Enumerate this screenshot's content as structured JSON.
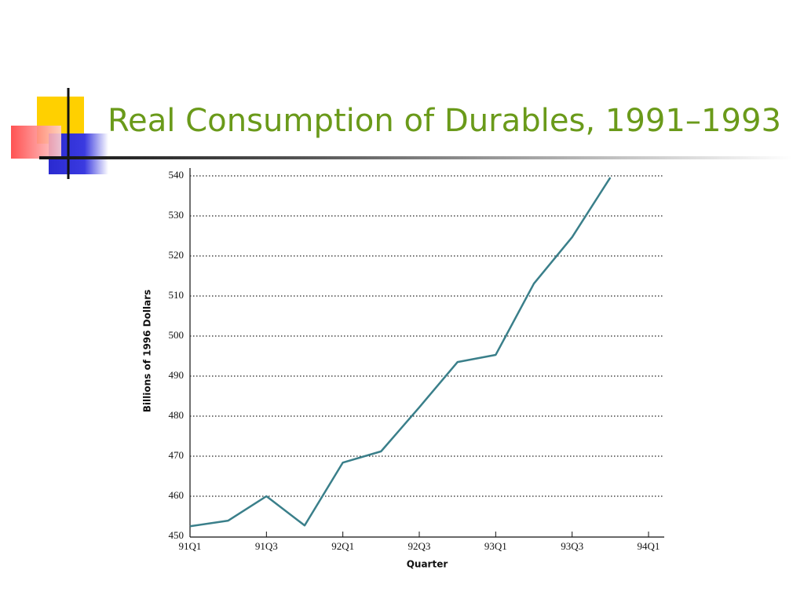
{
  "chart_data": {
    "type": "line",
    "title": "Real Consumption of Durables, 1991–1993",
    "y_label": "Billions of 1996 Dollars",
    "x_label": "Quarter",
    "categories": [
      "91Q1",
      null,
      "91Q3",
      null,
      "92Q1",
      null,
      "92Q3",
      null,
      "93Q1",
      null,
      "93Q3",
      null,
      "94Q1"
    ],
    "series": [
      {
        "name": "Real consumption of durables",
        "color": "#3a7f8a",
        "values": [
          452.5,
          453.9,
          460.0,
          452.7,
          468.4,
          471.2,
          482.2,
          493.5,
          495.3,
          513.1,
          524.7,
          539.6,
          null
        ]
      }
    ],
    "ylim": [
      450,
      540
    ],
    "yticks": [
      450,
      460,
      470,
      480,
      490,
      500,
      510,
      520,
      530,
      540
    ],
    "grid": true
  }
}
